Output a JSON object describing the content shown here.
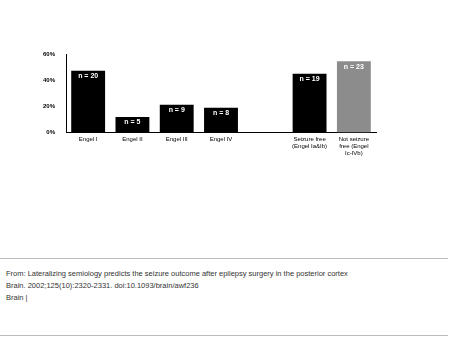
{
  "chart_data": {
    "type": "bar",
    "categories": [
      "Engel I",
      "Engel II",
      "Engel III",
      "Engel IV",
      null,
      [
        "Seizure free",
        "(Engel Ia&Ib)"
      ],
      [
        "Not seizure",
        "free (Engel",
        "Ic-IVb)"
      ]
    ],
    "values": [
      47.6,
      11.9,
      21.4,
      19.0,
      null,
      45.2,
      54.8
    ],
    "bar_labels": [
      "n = 20",
      "n = 5",
      "n = 9",
      "n = 8",
      null,
      "n = 19",
      "n = 23"
    ],
    "colors": [
      "#000000",
      "#000000",
      "#000000",
      "#000000",
      "#000000",
      "#000000",
      "#8c8c8c"
    ],
    "ylim": [
      0,
      60
    ],
    "yticks": [
      {
        "value": 0,
        "label": "0%"
      },
      {
        "value": 20,
        "label": "20%"
      },
      {
        "value": 40,
        "label": "40%"
      },
      {
        "value": 60,
        "label": "60%"
      }
    ],
    "grid": false
  },
  "footer": [
    "From: Lateralizing semiology predicts the seizure outcome after epilepsy surgery in the posterior cortex",
    "Brain. 2002;125(10):2320-2331. doi:10.1093/brain/awf236",
    "Brain |"
  ]
}
